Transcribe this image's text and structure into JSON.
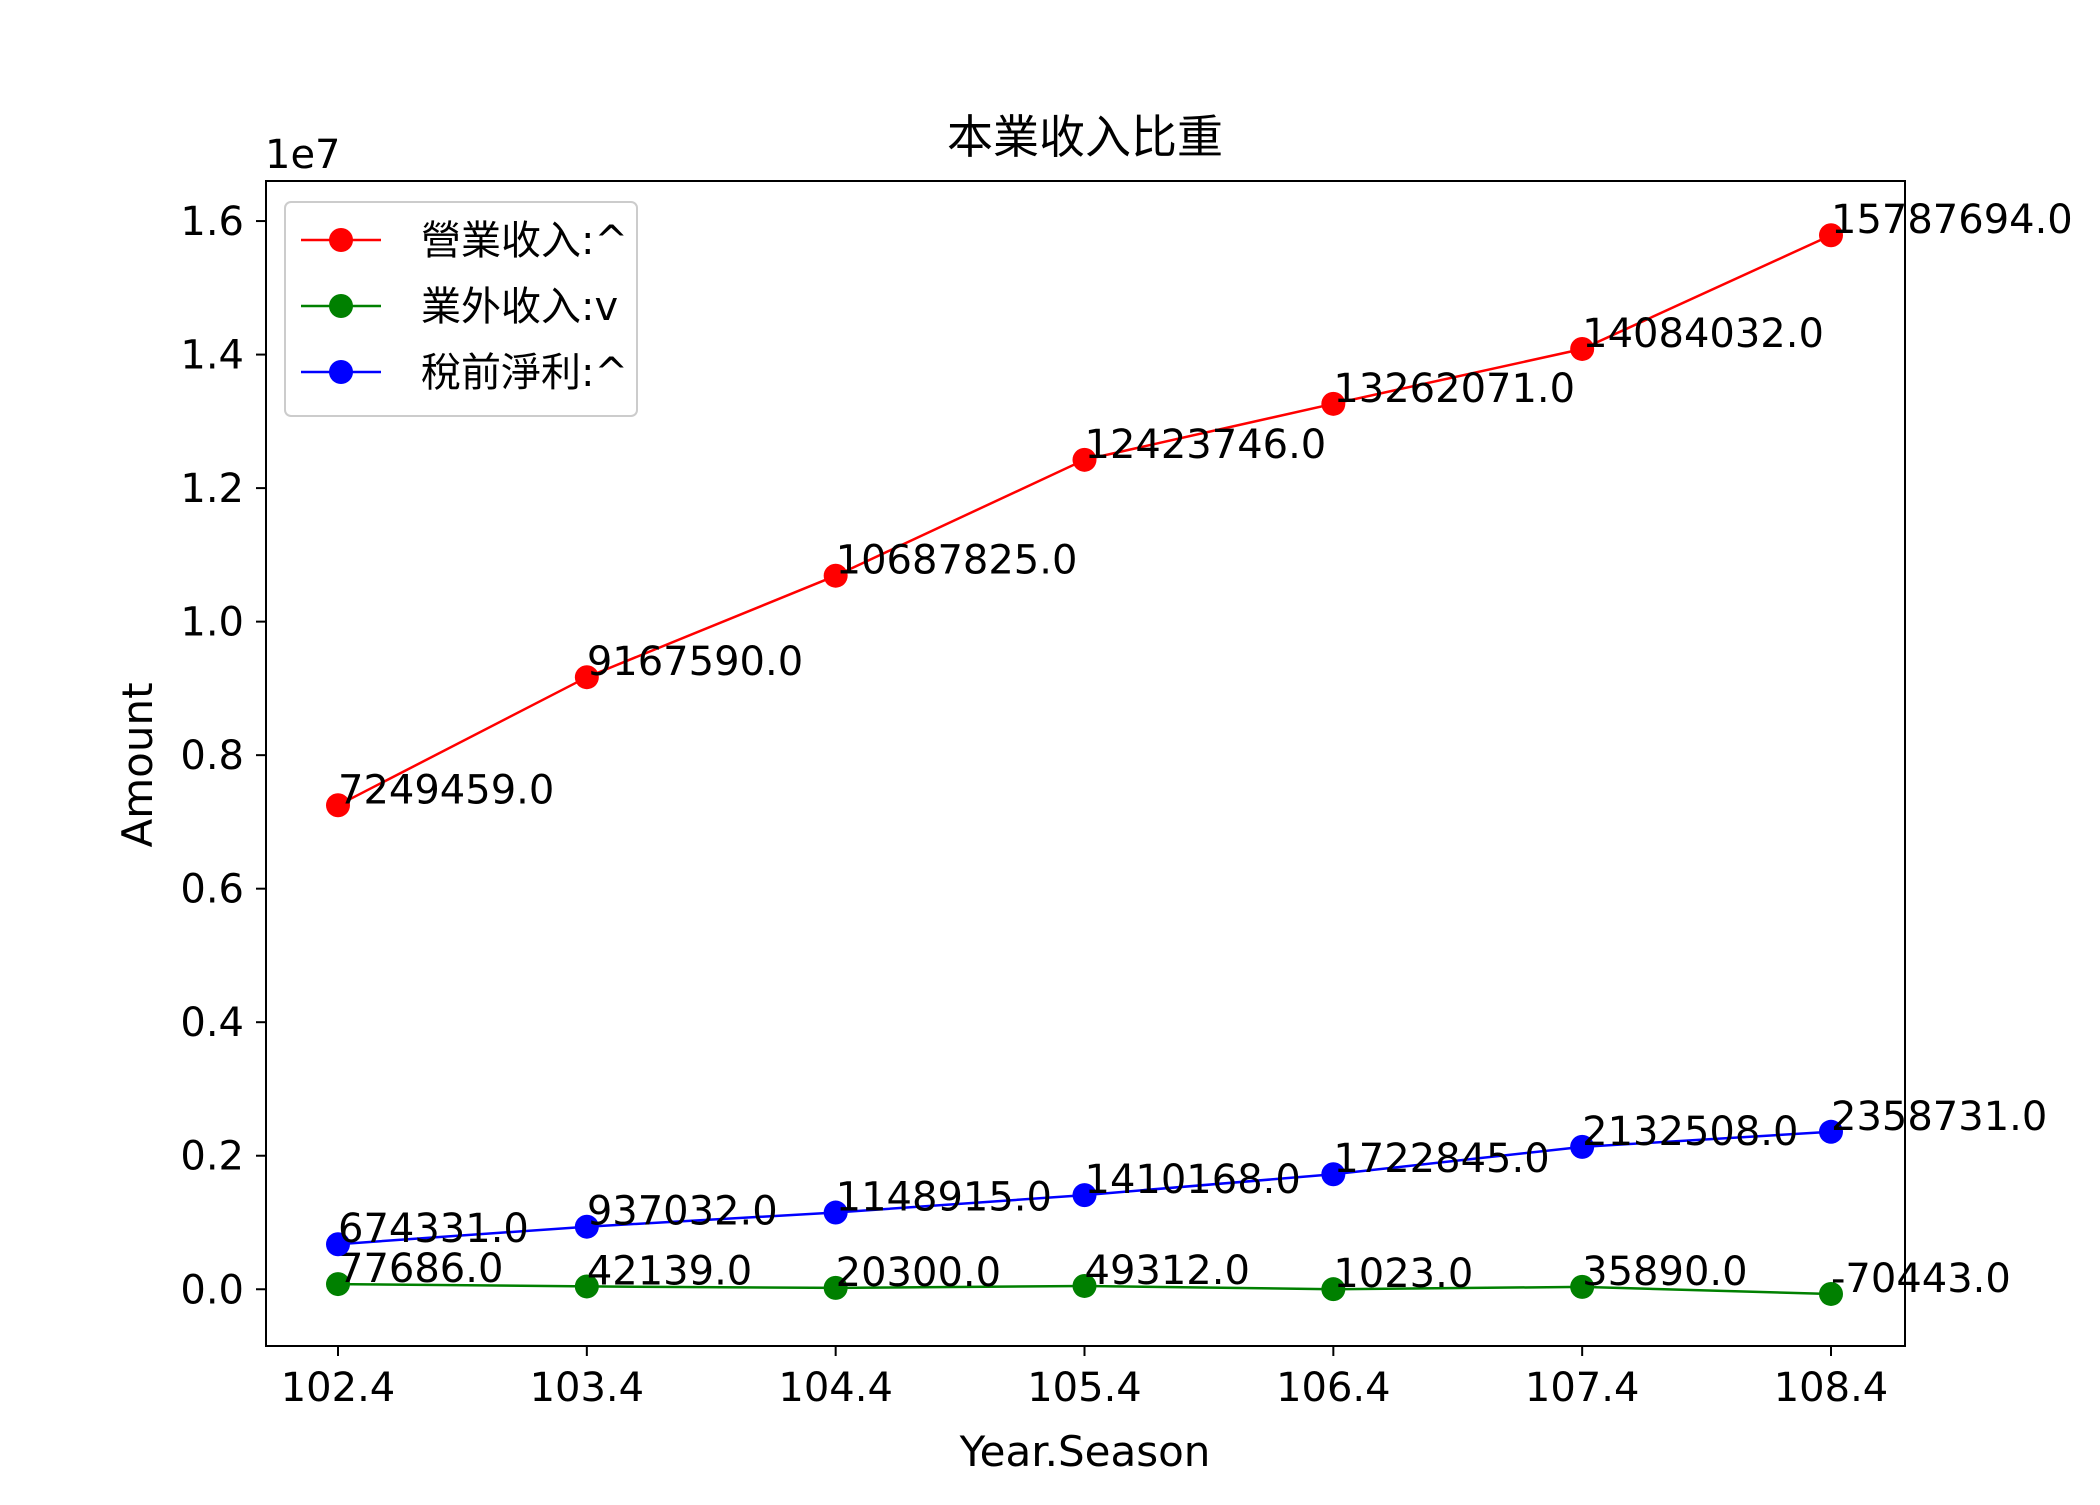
{
  "chart_data": {
    "type": "line",
    "title": "本業收入比重",
    "xlabel": "Year.Season",
    "ylabel": "Amount",
    "y_offset_text": "1e7",
    "y_multiplier": 10000000,
    "categories": [
      "102.4",
      "103.4",
      "104.4",
      "105.4",
      "106.4",
      "107.4",
      "108.4"
    ],
    "ylim": [
      -850000,
      16600000
    ],
    "y_ticks": [
      0.0,
      0.2,
      0.4,
      0.6,
      0.8,
      1.0,
      1.2,
      1.4,
      1.6
    ],
    "y_tick_labels": [
      "0.0",
      "0.2",
      "0.4",
      "0.6",
      "0.8",
      "1.0",
      "1.2",
      "1.4",
      "1.6"
    ],
    "grid": false,
    "legend_position": "upper-left",
    "series": [
      {
        "name": "營業收入:^",
        "color": "#ff0000",
        "values": [
          7249459,
          9167590,
          10687825,
          12423746,
          13262071,
          14084032,
          15787694
        ],
        "labels": [
          "7249459.0",
          "9167590.0",
          "10687825.0",
          "12423746.0",
          "13262071.0",
          "14084032.0",
          "15787694.0"
        ]
      },
      {
        "name": "業外收入:v",
        "color": "#008000",
        "values": [
          77686,
          42139,
          20300,
          49312,
          1023,
          35890,
          -70443
        ],
        "labels": [
          "77686.0",
          "42139.0",
          "20300.0",
          "49312.0",
          "1023.0",
          "35890.0",
          "-70443.0"
        ]
      },
      {
        "name": "稅前淨利:^",
        "color": "#0000ff",
        "values": [
          674331,
          937032,
          1148915,
          1410168,
          1722845,
          2132508,
          2358731
        ],
        "labels": [
          "674331.0",
          "937032.0",
          "1148915.0",
          "1410168.0",
          "1722845.0",
          "2132508.0",
          "2358731.0"
        ]
      }
    ]
  }
}
